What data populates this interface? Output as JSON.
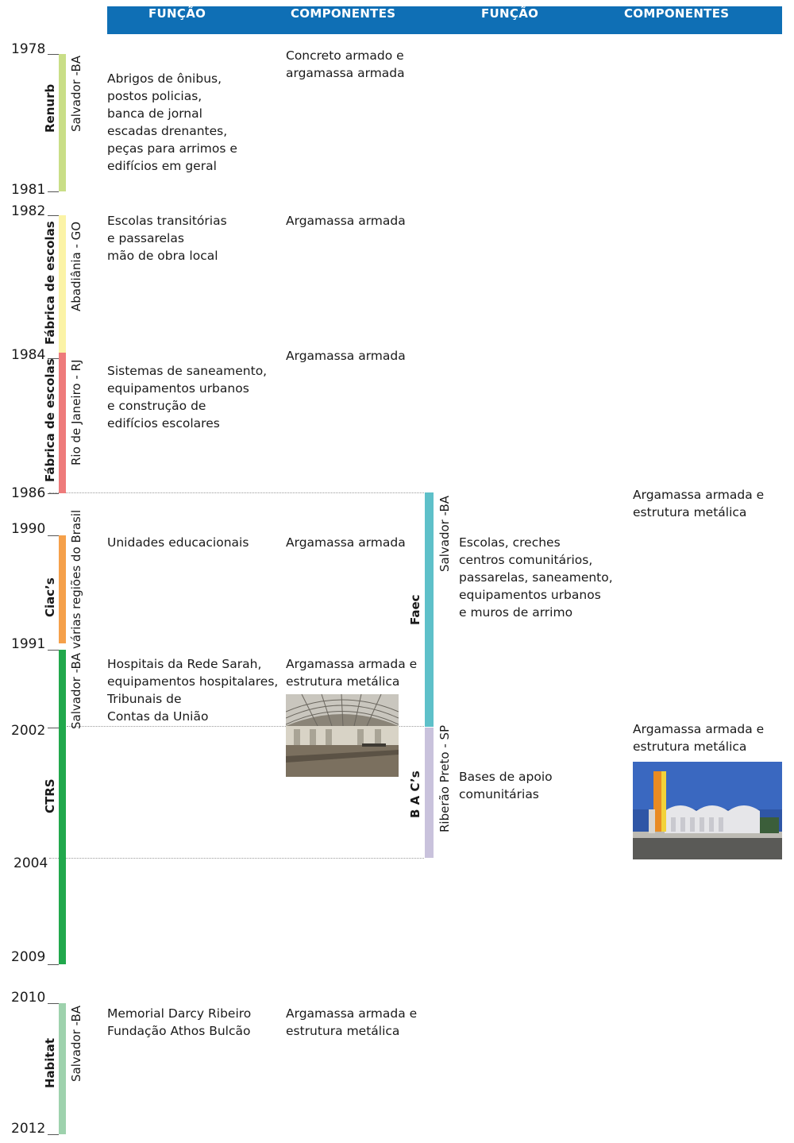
{
  "header": {
    "col1": "FUNÇÃO",
    "col2": "COMPONENTES",
    "col3": "FUNÇÃO",
    "col4": "COMPONENTES",
    "color": "#0f6fb5"
  },
  "years": [
    "1978",
    "1981",
    "1982",
    "1984",
    "1986",
    "1990",
    "1991",
    "2002",
    "2004",
    "2009",
    "2010",
    "2012"
  ],
  "programs": {
    "renurb": {
      "name": "Renurb",
      "place": "Salvador -BA",
      "color": "#c9de87",
      "funcao": "Abrigos de ônibus,\npostos policias,\nbanca de jornal\nescadas drenantes,\npeças para arrimos e\nedifícios em geral",
      "componentes": "Concreto armado e\nargamassa armada"
    },
    "fabrica_go": {
      "name": "Fábrica de escolas",
      "place": "Abadiânia - GO",
      "color": "#fbf3a6",
      "funcao": "Escolas transitórias\ne passarelas\nmão de obra local",
      "componentes": "Argamassa armada"
    },
    "fabrica_rj": {
      "name": "Fábrica de escolas",
      "place": "Rio de Janeiro - RJ",
      "color": "#ee7b7b",
      "funcao": "Sistemas de saneamento,\nequipamentos urbanos\ne construção de\nedifícios escolares",
      "componentes": "Argamassa armada"
    },
    "ciacs": {
      "name": "Ciac’s",
      "place": "várias regiões do Brasil",
      "color": "#f5a04a",
      "funcao": "Unidades educacionais",
      "componentes": "Argamassa armada"
    },
    "ctrs": {
      "name": "CTRS",
      "place": "Salvador -BA",
      "color": "#21a84c",
      "funcao": "Hospitais da Rede Sarah,\nequipamentos hospitalares,\nTribunais de\nContas da União",
      "componentes": "Argamassa armada e\nestrutura metálica"
    },
    "faec": {
      "name": "Faec",
      "place": "Salvador -BA",
      "color": "#5ec0c9",
      "funcao": "Escolas, creches\ncentros comunitários,\npassarelas, saneamento,\nequipamentos urbanos\ne muros de arrimo",
      "componentes": "Argamassa armada e\nestrutura metálica"
    },
    "bacs": {
      "name": "B A C’s",
      "place": "Riberão Preto - SP",
      "color": "#c9c2dc",
      "funcao": "Bases de apoio\ncomunitárias",
      "componentes": "Argamassa armada e\nestrutura metálica"
    },
    "habitat": {
      "name": "Habitat",
      "place": "Salvador -BA",
      "color": "#9ed2ad",
      "funcao": "Memorial Darcy Ribeiro\nFundação Athos Bulcão",
      "componentes": "Argamassa armada e\nestrutura metálica"
    }
  }
}
